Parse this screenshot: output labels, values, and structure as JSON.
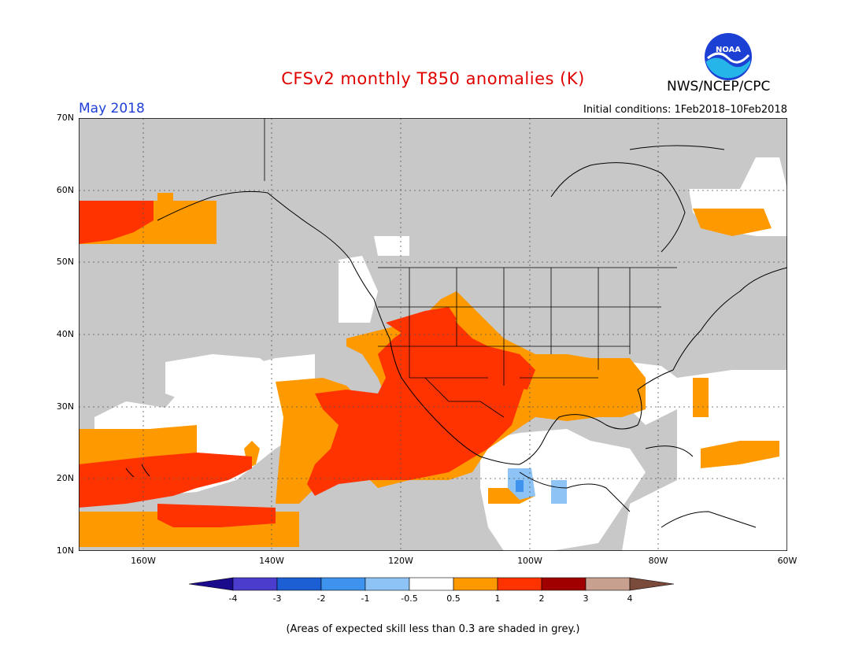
{
  "header": {
    "title": "CFSv2 monthly T850 anomalies (K)",
    "org": "NWS/NCEP/CPC",
    "month": "May 2018",
    "initial_conditions": "Initial conditions: 1Feb2018–10Feb2018"
  },
  "logo": {
    "text": "NOAA",
    "icon": "noaa-logo-icon"
  },
  "map": {
    "projection": "lat-lon",
    "lat_range": [
      10,
      70
    ],
    "lon_range": [
      -170,
      -60
    ],
    "lat_ticks": [
      "10N",
      "20N",
      "30N",
      "40N",
      "50N",
      "60N",
      "70N"
    ],
    "lon_ticks": [
      "160W",
      "140W",
      "120W",
      "100W",
      "80W",
      "60W"
    ]
  },
  "colorbar": {
    "labels": [
      "-4",
      "-3",
      "-2",
      "-1",
      "-0.5",
      "0.5",
      "1",
      "2",
      "3",
      "4"
    ],
    "colors": [
      "#1a0a8c",
      "#4a3ccc",
      "#1c5ed4",
      "#3d93ee",
      "#8ec4f5",
      "#ffffff",
      "#ff9900",
      "#ff3300",
      "#a00000",
      "#c8a090",
      "#7a4a3a"
    ]
  },
  "legend_colors": {
    "grey": "#c8c8c8",
    "white": "#ffffff",
    "light_orange": "#ff9900",
    "red_orange": "#ff3300",
    "light_blue": "#8ec4f5",
    "medium_blue": "#3d93ee"
  },
  "footnote": "(Areas of expected skill less than 0.3 are shaded in grey.)"
}
